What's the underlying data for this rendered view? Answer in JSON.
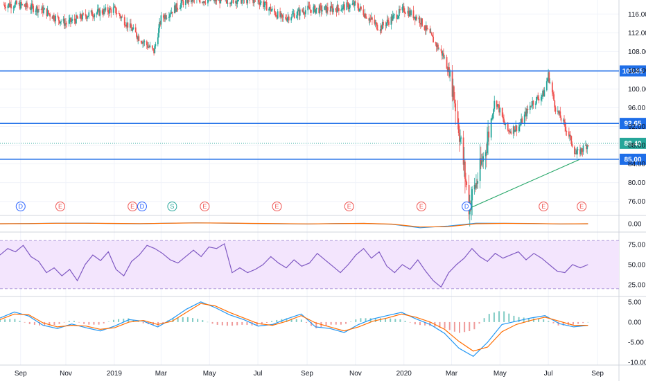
{
  "chart_data": [
    {
      "type": "candlestick",
      "pane": "price",
      "title": "",
      "x_ticks": [
        "Sep",
        "Nov",
        "2019",
        "Mar",
        "May",
        "Jul",
        "Sep",
        "Nov",
        "2020",
        "Mar",
        "May",
        "Jul",
        "Sep"
      ],
      "y_ticks": [
        "76.00",
        "80.00",
        "84.00",
        "88.00",
        "92.00",
        "96.00",
        "100.00",
        "104.00",
        "108.00",
        "112.00",
        "116.00"
      ],
      "ylim": [
        73,
        119
      ],
      "last_price": "88.40",
      "horizontal_levels": [
        {
          "label": "103.85",
          "value": 103.85,
          "color": "#1e6ee8"
        },
        {
          "label": "92.65",
          "value": 92.65,
          "color": "#1e6ee8"
        },
        {
          "label": "85.00",
          "value": 85.0,
          "color": "#1e6ee8"
        }
      ],
      "trendline": {
        "color": "#1aa260",
        "from": {
          "date": "2020-03-23",
          "value": 74.5
        },
        "to": {
          "date": "2020-08-10",
          "value": 85.0
        }
      },
      "approx_close_path": [
        {
          "date": "2018-09",
          "value": 118
        },
        {
          "date": "2018-10",
          "value": 117
        },
        {
          "date": "2018-11",
          "value": 114
        },
        {
          "date": "2018-12",
          "value": 116
        },
        {
          "date": "2019-01",
          "value": 117
        },
        {
          "date": "2019-02",
          "value": 111
        },
        {
          "date": "2019-02-20",
          "value": 108
        },
        {
          "date": "2019-03",
          "value": 115
        },
        {
          "date": "2019-04",
          "value": 119
        },
        {
          "date": "2019-07",
          "value": 119
        },
        {
          "date": "2019-08",
          "value": 115
        },
        {
          "date": "2019-09",
          "value": 117
        },
        {
          "date": "2019-10",
          "value": 117
        },
        {
          "date": "2019-11",
          "value": 118
        },
        {
          "date": "2019-12",
          "value": 113
        },
        {
          "date": "2020-01",
          "value": 117
        },
        {
          "date": "2020-01-20",
          "value": 115
        },
        {
          "date": "2020-02",
          "value": 112
        },
        {
          "date": "2020-02-20",
          "value": 107
        },
        {
          "date": "2020-03",
          "value": 102
        },
        {
          "date": "2020-03-10",
          "value": 92
        },
        {
          "date": "2020-03-23",
          "value": 75
        },
        {
          "date": "2020-04-05",
          "value": 82
        },
        {
          "date": "2020-04-15",
          "value": 89
        },
        {
          "date": "2020-04-25",
          "value": 98
        },
        {
          "date": "2020-05-10",
          "value": 91
        },
        {
          "date": "2020-05-25",
          "value": 92
        },
        {
          "date": "2020-06-10",
          "value": 97
        },
        {
          "date": "2020-06-25",
          "value": 99
        },
        {
          "date": "2020-07-01",
          "value": 103
        },
        {
          "date": "2020-07-10",
          "value": 96
        },
        {
          "date": "2020-07-25",
          "value": 91
        },
        {
          "date": "2020-08-05",
          "value": 86
        },
        {
          "date": "2020-08-12",
          "value": 87
        },
        {
          "date": "2020-08-20",
          "value": 88.4
        }
      ],
      "events": [
        {
          "label": "D",
          "date": "2018-09-05",
          "color": "#2962ff"
        },
        {
          "label": "E",
          "date": "2018-10-25",
          "color": "#ef5350"
        },
        {
          "label": "E",
          "date": "2019-01-24",
          "color": "#ef5350"
        },
        {
          "label": "D",
          "date": "2019-02-05",
          "color": "#2962ff"
        },
        {
          "label": "S",
          "date": "2019-03-15",
          "color": "#26a69a"
        },
        {
          "label": "E",
          "date": "2019-04-25",
          "color": "#ef5350"
        },
        {
          "label": "E",
          "date": "2019-07-25",
          "color": "#ef5350"
        },
        {
          "label": "E",
          "date": "2019-10-24",
          "color": "#ef5350"
        },
        {
          "label": "E",
          "date": "2020-01-23",
          "color": "#ef5350"
        },
        {
          "label": "D",
          "date": "2020-03-20",
          "color": "#2962ff"
        },
        {
          "label": "E",
          "date": "2020-06-25",
          "color": "#ef5350"
        },
        {
          "label": "E",
          "date": "2020-08-12",
          "color": "#ef5350"
        }
      ]
    },
    {
      "type": "line",
      "pane": "indicator",
      "y_ticks": [
        "0.00"
      ],
      "ylim": [
        -0.6,
        0.6
      ],
      "series": [
        {
          "color": "#2196f3",
          "values": [
            0.0,
            0.02,
            0.05,
            0.05,
            0.02,
            0.0,
            0.05,
            0.08,
            0.05,
            0.02,
            0.0,
            -0.02,
            0.02,
            0.03,
            -0.05,
            -0.35,
            -0.2,
            0.05,
            0.04,
            0.02,
            -0.02,
            0.0
          ]
        },
        {
          "color": "#ff6d00",
          "values": [
            0.0,
            0.01,
            0.04,
            0.04,
            0.03,
            0.01,
            0.04,
            0.07,
            0.06,
            0.03,
            0.01,
            -0.01,
            0.01,
            0.03,
            -0.03,
            -0.28,
            -0.25,
            0.0,
            0.03,
            0.02,
            -0.01,
            0.0
          ]
        }
      ]
    },
    {
      "type": "line",
      "pane": "RSI",
      "y_ticks": [
        "25.00",
        "50.00",
        "75.00"
      ],
      "ylim": [
        12,
        88
      ],
      "band": [
        20,
        80
      ],
      "series": [
        {
          "color": "#7e57c2",
          "values": [
            62,
            70,
            66,
            74,
            60,
            54,
            40,
            46,
            36,
            44,
            30,
            50,
            62,
            55,
            66,
            44,
            36,
            54,
            62,
            74,
            70,
            64,
            56,
            52,
            60,
            68,
            60,
            72,
            70,
            76,
            40,
            46,
            40,
            44,
            50,
            60,
            52,
            46,
            56,
            48,
            52,
            64,
            56,
            48,
            40,
            50,
            62,
            70,
            58,
            66,
            48,
            40,
            50,
            44,
            56,
            42,
            30,
            22,
            40,
            50,
            58,
            70,
            60,
            54,
            64,
            58,
            62,
            66,
            56,
            64,
            58,
            50,
            42,
            40,
            50,
            46,
            50
          ]
        }
      ]
    },
    {
      "type": "line+bar",
      "pane": "MACD",
      "y_ticks": [
        "-10.00",
        "-5.00",
        "0.00",
        "5.00"
      ],
      "ylim": [
        -10.5,
        6
      ],
      "series": [
        {
          "name": "",
          "color": "#2196f3",
          "values": [
            1.0,
            2.5,
            1.5,
            -0.8,
            -1.6,
            -0.5,
            -1.4,
            -2.2,
            -1.0,
            0.6,
            0.2,
            -1.2,
            0.8,
            3.2,
            5.0,
            3.6,
            1.8,
            0.6,
            -1.0,
            -0.6,
            0.8,
            2.0,
            -1.2,
            -1.6,
            -2.6,
            -0.6,
            0.8,
            1.6,
            2.4,
            0.8,
            -0.6,
            -2.8,
            -6.5,
            -8.5,
            -5.0,
            -0.6,
            0.2,
            1.0,
            1.6,
            -0.4,
            -1.2,
            -0.8
          ]
        },
        {
          "name": "",
          "color": "#ff6d00",
          "values": [
            0.6,
            2.0,
            1.8,
            -0.2,
            -1.2,
            -0.8,
            -1.0,
            -1.8,
            -1.4,
            0.0,
            0.4,
            -0.6,
            0.2,
            2.4,
            4.6,
            4.0,
            2.4,
            1.0,
            -0.4,
            -0.8,
            0.2,
            1.6,
            -0.2,
            -1.2,
            -2.2,
            -1.2,
            0.2,
            1.0,
            2.0,
            1.2,
            0.0,
            -1.8,
            -4.8,
            -7.2,
            -6.2,
            -2.4,
            -0.6,
            0.4,
            1.2,
            0.2,
            -0.8,
            -0.8
          ]
        }
      ]
    }
  ]
}
